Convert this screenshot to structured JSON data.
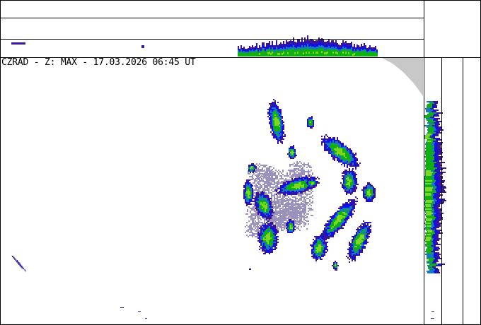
{
  "header": {
    "title": "CZRAD - Z: MAX - 17.03.2026 06:45 UT"
  },
  "panels": {
    "main": "max-reflectivity-plan-view",
    "top": "north-south-max-projection",
    "right": "east-west-max-projection"
  },
  "colors": {
    "weak_stratiform": "#9a92bc",
    "very_light": "#3c1496",
    "light": "#1010e0",
    "moderate_low": "#1478c8",
    "moderate": "#10b010",
    "moderate_high": "#7cd820",
    "out_of_range_mask": "#c8c8c8",
    "frame": "#000000"
  }
}
